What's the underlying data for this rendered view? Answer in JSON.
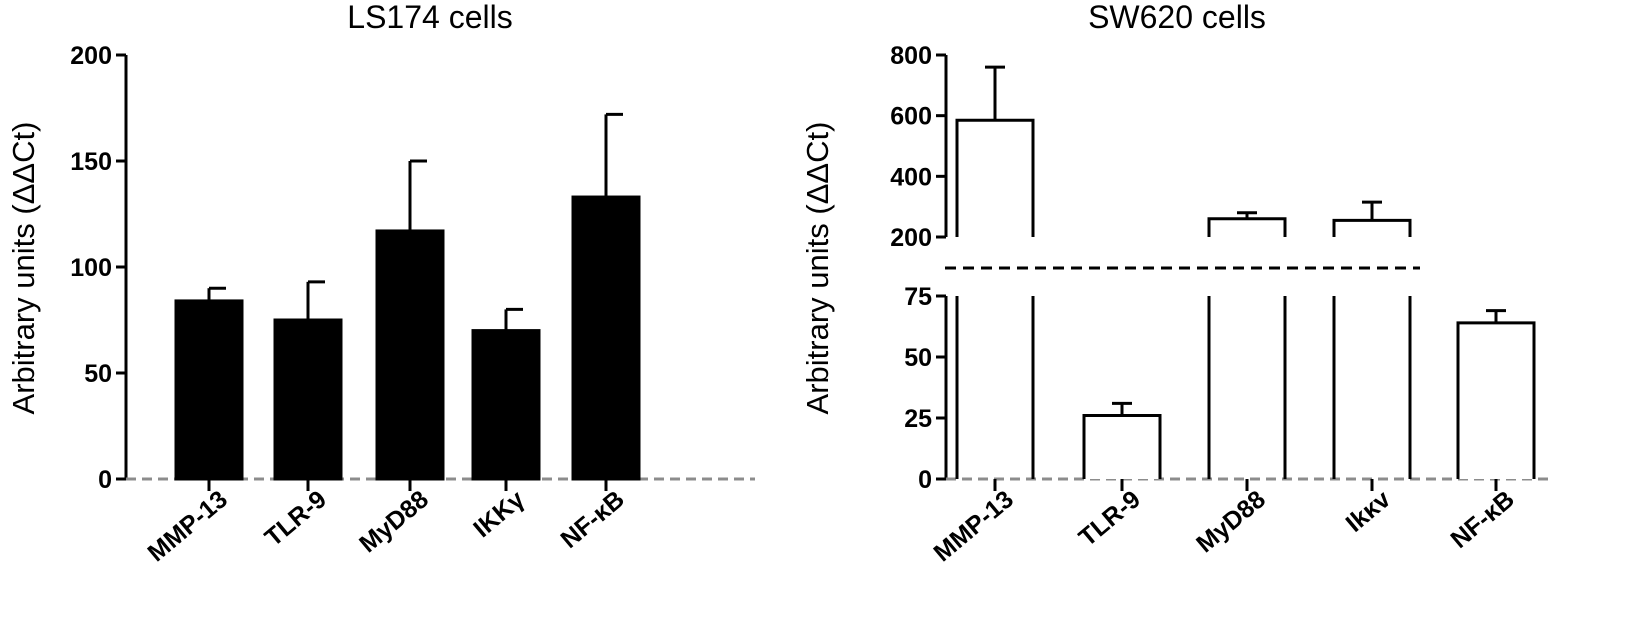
{
  "chart_data": [
    {
      "type": "bar",
      "title": "LS174 cells",
      "ylabel": "Arbitrary units (ΔΔCt)",
      "categories": [
        "MMP-13",
        "TLR-9",
        "MyD88",
        "IKKγ",
        "NF-κB"
      ],
      "values": [
        84,
        75,
        117,
        70,
        133
      ],
      "errors": [
        6,
        18,
        33,
        10,
        39
      ],
      "ylim": [
        0,
        200
      ],
      "yticks": [
        "0",
        "50",
        "100",
        "150",
        "200"
      ],
      "bar_color": "#000000",
      "baseline_color": "#8c8c8c",
      "grid": false
    },
    {
      "type": "bar",
      "title": "SW620 cells",
      "ylabel": "Arbitrary units (ΔΔCt)",
      "categories": [
        "MMP-13",
        "TLR-9",
        "MyD88",
        "Ikκv",
        "NF-κB"
      ],
      "values": [
        585,
        26,
        260,
        255,
        64
      ],
      "errors": [
        175,
        5,
        20,
        60,
        5
      ],
      "broken_axis": true,
      "ylim_lower": [
        0,
        75
      ],
      "ylim_upper": [
        200,
        800
      ],
      "yticks_lower": [
        "0",
        "25",
        "50",
        "75"
      ],
      "yticks_upper": [
        "200",
        "400",
        "600",
        "800"
      ],
      "bar_color": "#ffffff",
      "baseline_color": "#8c8c8c",
      "grid": false
    }
  ]
}
